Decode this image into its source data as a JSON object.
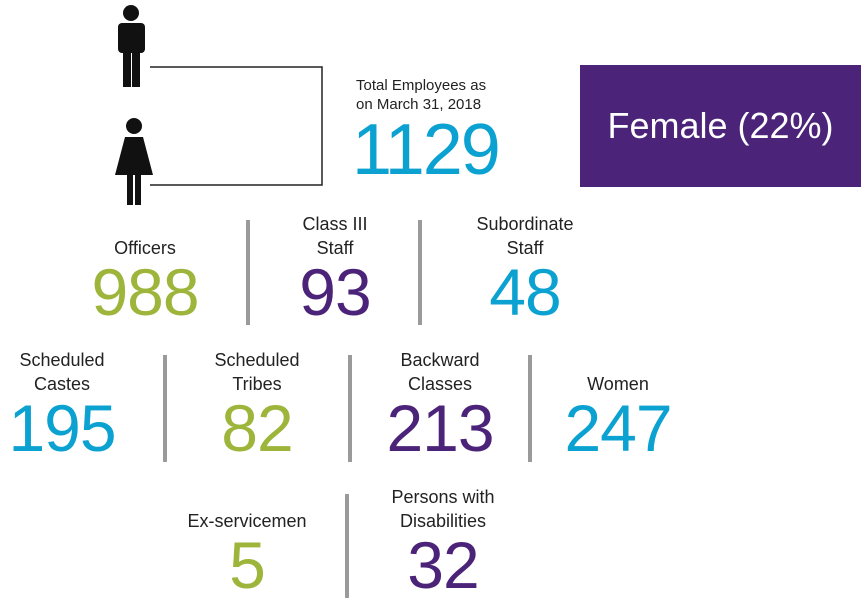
{
  "header": {
    "total_label": "Total Employees as on March 31, 2018",
    "total": 1129,
    "badge": "Female (22%)"
  },
  "rows": [
    [
      {
        "label": "Officers",
        "value": 988,
        "color": "#9db53b"
      },
      {
        "label": "Class III Staff",
        "value": 93,
        "color": "#4b2378"
      },
      {
        "label": "Subordinate Staff",
        "value": 48,
        "color": "#0ba1d1"
      }
    ],
    [
      {
        "label": "Scheduled Castes",
        "value": 195,
        "color": "#0ba1d1"
      },
      {
        "label": "Scheduled Tribes",
        "value": 82,
        "color": "#9db53b"
      },
      {
        "label": "Backward Classes",
        "value": 213,
        "color": "#4b2378"
      },
      {
        "label": "Women",
        "value": 247,
        "color": "#0ba1d1"
      }
    ],
    [
      {
        "label": "Ex-servicemen",
        "value": 5,
        "color": "#9db53b"
      },
      {
        "label": "Persons with Disabilities",
        "value": 32,
        "color": "#4b2378"
      }
    ]
  ]
}
